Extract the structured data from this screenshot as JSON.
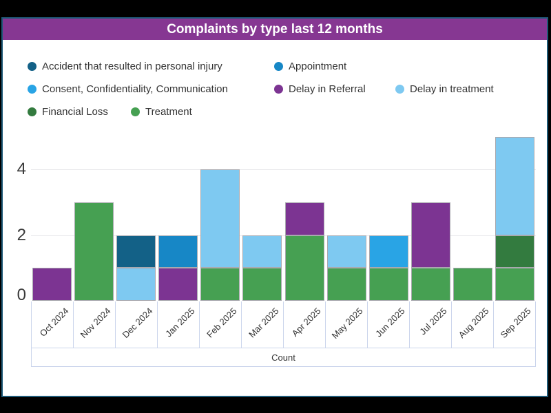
{
  "title": "Complaints by type last 12 months",
  "colors": {
    "page_background": "#000000",
    "card_border": "#1E5A78",
    "header_background": "#863792",
    "header_text": "#FFFFFF",
    "grid_line": "#E7E7EA",
    "axis_cell_border": "#CBD5EC",
    "bar_outline": "#A9A9AF",
    "text": "#333333"
  },
  "legend": {
    "items": [
      {
        "label": "Accident that resulted in personal injury",
        "color": "#136187"
      },
      {
        "label": "Appointment",
        "color": "#1787C6"
      },
      {
        "label": "Consent, Confidentiality, Communication",
        "color": "#29A4E5"
      },
      {
        "label": "Delay in Referral",
        "color": "#7C3492"
      },
      {
        "label": "Delay in treatment",
        "color": "#7EC9F1"
      },
      {
        "label": "Financial Loss",
        "color": "#337B3F"
      },
      {
        "label": "Treatment",
        "color": "#46A052"
      }
    ]
  },
  "chart_data": {
    "type": "bar",
    "stacked": true,
    "title": "Complaints by type last 12 months",
    "xlabel": "Count",
    "legend_position": "top",
    "grid": true,
    "categories": [
      "Oct 2024",
      "Nov 2024",
      "Dec 2024",
      "Jan 2025",
      "Feb 2025",
      "Mar 2025",
      "Apr 2025",
      "May 2025",
      "Jun 2025",
      "Jul 2025",
      "Aug 2025",
      "Sep 2025"
    ],
    "yticks": [
      0,
      2,
      4
    ],
    "ylim": [
      0,
      5.3
    ],
    "stack_order": "bottom-to-top",
    "series": [
      {
        "name": "Treatment",
        "color": "#46A052",
        "values": [
          0,
          3,
          0,
          0,
          1,
          1,
          2,
          1,
          1,
          1,
          1,
          1
        ]
      },
      {
        "name": "Financial Loss",
        "color": "#337B3F",
        "values": [
          0,
          0,
          0,
          0,
          0,
          0,
          0,
          0,
          0,
          0,
          0,
          1
        ]
      },
      {
        "name": "Delay in treatment",
        "color": "#7EC9F1",
        "values": [
          0,
          0,
          1,
          0,
          3,
          1,
          0,
          1,
          0,
          0,
          0,
          3
        ]
      },
      {
        "name": "Delay in Referral",
        "color": "#7C3492",
        "values": [
          1,
          0,
          0,
          1,
          0,
          0,
          1,
          0,
          0,
          2,
          0,
          0
        ]
      },
      {
        "name": "Consent, Confidentiality, Communication",
        "color": "#29A4E5",
        "values": [
          0,
          0,
          0,
          0,
          0,
          0,
          0,
          0,
          1,
          0,
          0,
          0
        ]
      },
      {
        "name": "Appointment",
        "color": "#1787C6",
        "values": [
          0,
          0,
          0,
          1,
          0,
          0,
          0,
          0,
          0,
          0,
          0,
          0
        ]
      },
      {
        "name": "Accident that resulted in personal injury",
        "color": "#136187",
        "values": [
          0,
          0,
          1,
          0,
          0,
          0,
          0,
          0,
          0,
          0,
          0,
          0
        ]
      }
    ],
    "totals_by_month": [
      1,
      3,
      2,
      2,
      4,
      2,
      3,
      2,
      2,
      3,
      1,
      5
    ]
  }
}
